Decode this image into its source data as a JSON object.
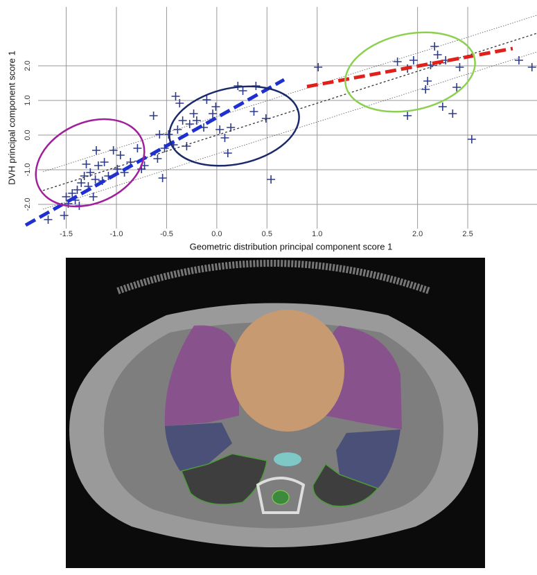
{
  "chart_data": {
    "type": "scatter",
    "xlabel": "Geometric distribution principal component score 1",
    "ylabel": "DVH principal component score 1",
    "xlim": [
      -1.78,
      3.19
    ],
    "ylim": [
      -2.7,
      3.7
    ],
    "xticks": [
      -1.5,
      {
        "value": -1.0,
        "label": "-1.0"
      },
      -0.5,
      {
        "value": 0,
        "label": "0.0"
      },
      0.5,
      {
        "value": 1.0,
        "label": "1.0"
      },
      {
        "value": 2.0,
        "label": "2.0"
      },
      2.5
    ],
    "yticks": [
      {
        "value": 2.0,
        "label": "2.0"
      },
      {
        "value": 1.0,
        "label": "1.0"
      },
      {
        "value": 0,
        "label": "0.0"
      },
      {
        "value": -1.0,
        "label": "-1.0"
      },
      {
        "value": -2.0,
        "label": "-2.0"
      }
    ],
    "grid": true,
    "series": [
      {
        "color": "#2b3a8c",
        "x": [
          -1.68,
          -1.52,
          -1.5,
          -1.48,
          -1.44,
          -1.41,
          -1.39,
          -1.37,
          -1.35,
          -1.32,
          -1.3,
          -1.28,
          -1.26,
          -1.23,
          -1.21,
          -1.2,
          -1.18,
          -1.14,
          -1.12,
          -1.08,
          -1.03,
          -0.99,
          -0.96,
          -0.92,
          -0.86,
          -0.79,
          -0.75,
          -0.72,
          -0.63,
          -0.59,
          -0.57,
          -0.54,
          -0.52,
          -0.48,
          -0.43,
          -0.41,
          -0.39,
          -0.37,
          -0.34,
          -0.3,
          -0.27,
          -0.23,
          -0.2,
          -0.13,
          -0.1,
          -0.04,
          -0.01,
          0.03,
          0.08,
          0.11,
          0.14,
          0.21,
          0.26,
          0.39,
          0.37,
          0.49,
          0.54,
          1.01,
          1.8,
          1.9,
          1.9,
          1.96,
          2.08,
          2.1,
          2.13,
          2.17,
          2.2,
          2.25,
          2.28,
          2.35,
          2.39,
          2.42,
          2.54,
          3.01,
          3.14
        ],
        "values": [
          -2.44,
          -2.32,
          -1.78,
          -1.98,
          -1.68,
          -1.88,
          -1.58,
          -2.04,
          -1.38,
          -1.18,
          -0.84,
          -1.48,
          -1.08,
          -1.78,
          -1.28,
          -0.44,
          -0.88,
          -1.32,
          -0.78,
          -1.18,
          -0.44,
          -0.98,
          -0.58,
          -1.08,
          -0.78,
          -0.38,
          -0.98,
          -0.88,
          0.56,
          -0.68,
          0.02,
          -1.24,
          -0.38,
          0.02,
          -0.28,
          1.12,
          0.16,
          0.92,
          0.42,
          -0.32,
          0.32,
          0.62,
          0.42,
          0.22,
          1.02,
          0.62,
          0.82,
          0.16,
          -0.08,
          -0.52,
          0.22,
          1.42,
          1.28,
          1.42,
          0.68,
          0.48,
          -1.28,
          1.96,
          2.12,
          1.92,
          0.56,
          2.16,
          1.32,
          1.56,
          2.02,
          2.56,
          2.32,
          0.82,
          2.16,
          0.62,
          1.38,
          1.96,
          -0.12,
          2.16,
          1.96
        ]
      }
    ]
  }
}
